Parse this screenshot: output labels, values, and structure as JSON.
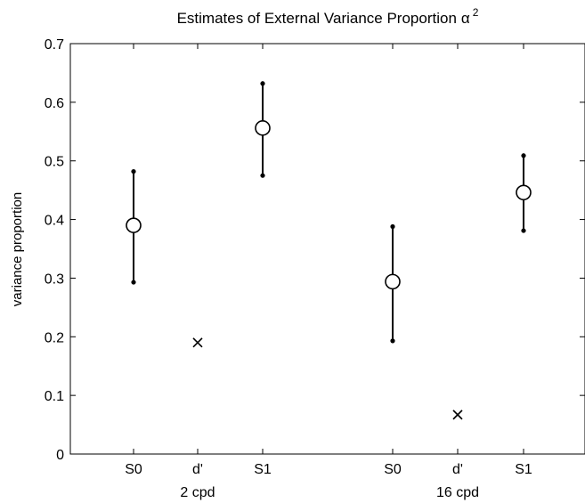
{
  "chart_data": {
    "type": "scatter",
    "title": "Estimates of External Variance Proportion",
    "title_symbol": "α",
    "title_superscript": "2",
    "xlabel": "",
    "ylabel": "variance proportion",
    "ylim": [
      0,
      0.7
    ],
    "yticks": [
      "0",
      "0.1",
      "0.2",
      "0.3",
      "0.4",
      "0.5",
      "0.6",
      "0.7"
    ],
    "grid": false,
    "groups": [
      {
        "label": "2 cpd",
        "points": [
          {
            "tick": "S0",
            "marker": "circle",
            "y": 0.39,
            "ylow": 0.293,
            "yhigh": 0.482
          },
          {
            "tick": "d'",
            "marker": "cross",
            "y": 0.19
          },
          {
            "tick": "S1",
            "marker": "circle",
            "y": 0.556,
            "ylow": 0.475,
            "yhigh": 0.632
          }
        ]
      },
      {
        "label": "16 cpd",
        "points": [
          {
            "tick": "S0",
            "marker": "circle",
            "y": 0.294,
            "ylow": 0.193,
            "yhigh": 0.388
          },
          {
            "tick": "d'",
            "marker": "cross",
            "y": 0.067
          },
          {
            "tick": "S1",
            "marker": "circle",
            "y": 0.446,
            "ylow": 0.381,
            "yhigh": 0.509
          }
        ]
      }
    ]
  }
}
